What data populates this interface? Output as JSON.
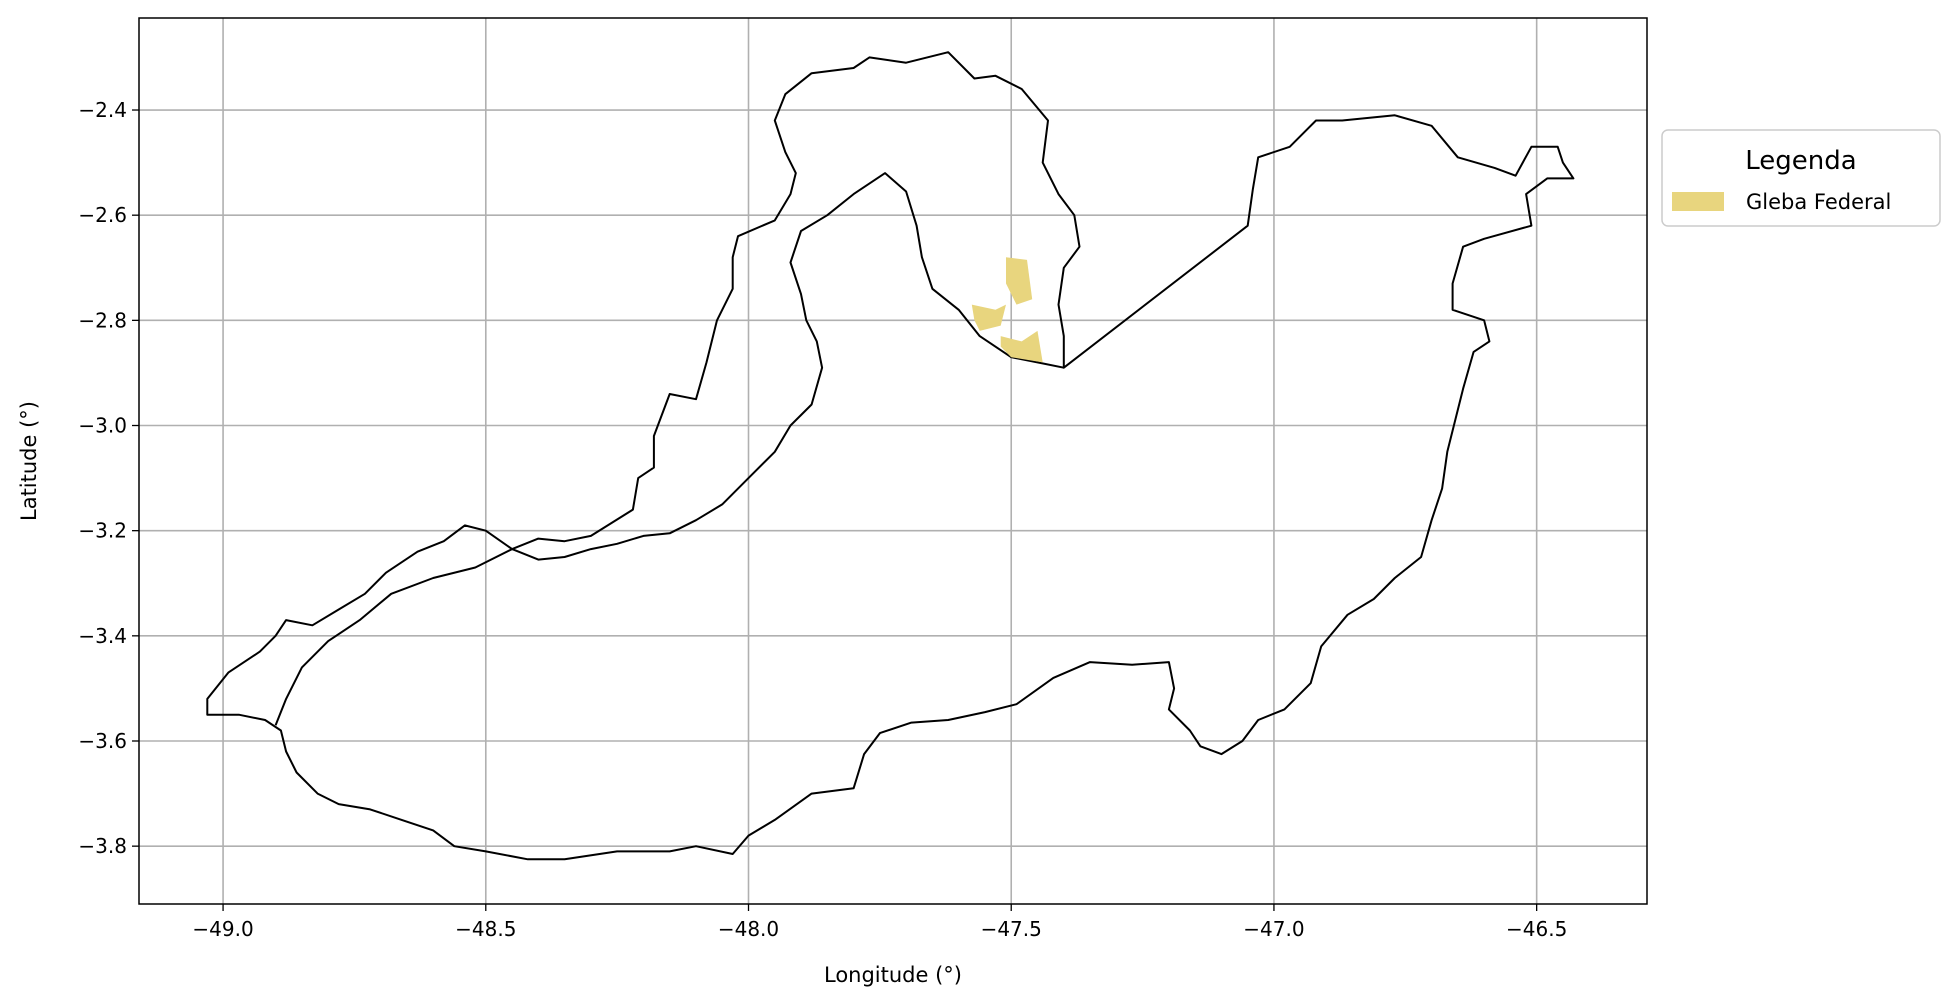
{
  "chart_data": {
    "type": "map",
    "xlabel": "Longitude (°)",
    "ylabel": "Latitude (°)",
    "xlim": [
      -49.16,
      -46.29
    ],
    "ylim": [
      -3.91,
      -2.225
    ],
    "xticks": [
      -49.0,
      -48.5,
      -48.0,
      -47.5,
      -47.0,
      -46.5
    ],
    "yticks": [
      -2.4,
      -2.6,
      -2.8,
      -3.0,
      -3.2,
      -3.4,
      -3.6,
      -3.8
    ],
    "xtick_labels": [
      "−49.0",
      "−48.5",
      "−48.0",
      "−47.5",
      "−47.0",
      "−46.5"
    ],
    "ytick_labels": [
      "−2.4",
      "−2.6",
      "−2.8",
      "−3.0",
      "−3.2",
      "−3.4",
      "−3.6",
      "−3.8"
    ],
    "grid": true,
    "legend": {
      "title": "Legenda",
      "placement": "outside-right-top",
      "entries": [
        {
          "label": "Gleba Federal",
          "color": "#e8d57e"
        }
      ]
    },
    "colors": {
      "boundary": "#000000",
      "gleba_fill": "#e8d57e",
      "grid": "#b0b0b0"
    },
    "boundary": [
      [
        -48.45,
        -3.235
      ],
      [
        -48.4,
        -3.215
      ],
      [
        -48.35,
        -3.22
      ],
      [
        -48.3,
        -3.21
      ],
      [
        -48.22,
        -3.16
      ],
      [
        -48.21,
        -3.1
      ],
      [
        -48.18,
        -3.08
      ],
      [
        -48.18,
        -3.02
      ],
      [
        -48.15,
        -2.94
      ],
      [
        -48.1,
        -2.95
      ],
      [
        -48.08,
        -2.88
      ],
      [
        -48.06,
        -2.8
      ],
      [
        -48.03,
        -2.74
      ],
      [
        -48.03,
        -2.68
      ],
      [
        -48.02,
        -2.64
      ],
      [
        -47.95,
        -2.61
      ],
      [
        -47.92,
        -2.56
      ],
      [
        -47.91,
        -2.52
      ],
      [
        -47.93,
        -2.48
      ],
      [
        -47.95,
        -2.42
      ],
      [
        -47.93,
        -2.37
      ],
      [
        -47.88,
        -2.33
      ],
      [
        -47.8,
        -2.32
      ],
      [
        -47.77,
        -2.3
      ],
      [
        -47.7,
        -2.31
      ],
      [
        -47.62,
        -2.29
      ],
      [
        -47.57,
        -2.34
      ],
      [
        -47.53,
        -2.335
      ],
      [
        -47.48,
        -2.36
      ],
      [
        -47.43,
        -2.42
      ],
      [
        -47.44,
        -2.5
      ],
      [
        -47.41,
        -2.56
      ],
      [
        -47.38,
        -2.6
      ],
      [
        -47.37,
        -2.66
      ],
      [
        -47.4,
        -2.7
      ],
      [
        -47.41,
        -2.77
      ],
      [
        -47.4,
        -2.83
      ],
      [
        -47.4,
        -2.89
      ],
      [
        -47.05,
        -2.62
      ],
      [
        -47.04,
        -2.55
      ],
      [
        -47.03,
        -2.49
      ],
      [
        -46.97,
        -2.47
      ],
      [
        -46.92,
        -2.42
      ],
      [
        -46.87,
        -2.42
      ],
      [
        -46.77,
        -2.41
      ],
      [
        -46.7,
        -2.43
      ],
      [
        -46.65,
        -2.49
      ],
      [
        -46.58,
        -2.51
      ],
      [
        -46.54,
        -2.525
      ],
      [
        -46.51,
        -2.47
      ],
      [
        -46.46,
        -2.47
      ],
      [
        -46.45,
        -2.5
      ],
      [
        -46.43,
        -2.53
      ],
      [
        -46.48,
        -2.53
      ],
      [
        -46.52,
        -2.56
      ],
      [
        -46.51,
        -2.62
      ],
      [
        -46.6,
        -2.645
      ],
      [
        -46.64,
        -2.66
      ],
      [
        -46.66,
        -2.73
      ],
      [
        -46.66,
        -2.78
      ],
      [
        -46.6,
        -2.8
      ],
      [
        -46.59,
        -2.84
      ],
      [
        -46.62,
        -2.86
      ],
      [
        -46.64,
        -2.93
      ],
      [
        -46.67,
        -3.05
      ],
      [
        -46.68,
        -3.12
      ],
      [
        -46.7,
        -3.18
      ],
      [
        -46.72,
        -3.25
      ],
      [
        -46.77,
        -3.29
      ],
      [
        -46.81,
        -3.33
      ],
      [
        -46.86,
        -3.36
      ],
      [
        -46.91,
        -3.42
      ],
      [
        -46.93,
        -3.49
      ],
      [
        -46.98,
        -3.54
      ],
      [
        -47.03,
        -3.56
      ],
      [
        -47.06,
        -3.6
      ],
      [
        -47.1,
        -3.625
      ],
      [
        -47.14,
        -3.61
      ],
      [
        -47.16,
        -3.58
      ],
      [
        -47.2,
        -3.54
      ],
      [
        -47.19,
        -3.5
      ],
      [
        -47.2,
        -3.45
      ],
      [
        -47.27,
        -3.455
      ],
      [
        -47.35,
        -3.45
      ],
      [
        -47.42,
        -3.48
      ],
      [
        -47.49,
        -3.53
      ],
      [
        -47.55,
        -3.545
      ],
      [
        -47.62,
        -3.56
      ],
      [
        -47.69,
        -3.565
      ],
      [
        -47.75,
        -3.585
      ],
      [
        -47.78,
        -3.625
      ],
      [
        -47.8,
        -3.69
      ],
      [
        -47.88,
        -3.7
      ],
      [
        -47.95,
        -3.75
      ],
      [
        -48.0,
        -3.78
      ],
      [
        -48.03,
        -3.815
      ],
      [
        -48.1,
        -3.8
      ],
      [
        -48.15,
        -3.81
      ],
      [
        -48.25,
        -3.81
      ],
      [
        -48.35,
        -3.825
      ],
      [
        -48.42,
        -3.825
      ],
      [
        -48.5,
        -3.81
      ],
      [
        -48.56,
        -3.8
      ],
      [
        -48.6,
        -3.77
      ],
      [
        -48.66,
        -3.75
      ],
      [
        -48.72,
        -3.73
      ],
      [
        -48.78,
        -3.72
      ],
      [
        -48.82,
        -3.7
      ],
      [
        -48.86,
        -3.66
      ],
      [
        -48.88,
        -3.62
      ],
      [
        -48.89,
        -3.58
      ],
      [
        -48.92,
        -3.56
      ],
      [
        -48.97,
        -3.55
      ],
      [
        -49.03,
        -3.55
      ],
      [
        -49.03,
        -3.52
      ],
      [
        -48.99,
        -3.47
      ],
      [
        -48.93,
        -3.43
      ],
      [
        -48.9,
        -3.4
      ],
      [
        -48.88,
        -3.37
      ],
      [
        -48.83,
        -3.38
      ],
      [
        -48.78,
        -3.35
      ],
      [
        -48.73,
        -3.32
      ],
      [
        -48.69,
        -3.28
      ],
      [
        -48.63,
        -3.24
      ],
      [
        -48.58,
        -3.22
      ],
      [
        -48.54,
        -3.19
      ],
      [
        -48.5,
        -3.2
      ],
      [
        -48.45,
        -3.235
      ]
    ],
    "boundary_inner": [
      [
        -48.45,
        -3.235
      ],
      [
        -48.4,
        -3.255
      ],
      [
        -48.35,
        -3.25
      ],
      [
        -48.3,
        -3.235
      ],
      [
        -48.25,
        -3.225
      ],
      [
        -48.2,
        -3.21
      ],
      [
        -48.15,
        -3.205
      ],
      [
        -48.1,
        -3.18
      ],
      [
        -48.05,
        -3.15
      ],
      [
        -48.0,
        -3.1
      ],
      [
        -47.95,
        -3.05
      ],
      [
        -47.92,
        -3.0
      ],
      [
        -47.88,
        -2.96
      ],
      [
        -47.86,
        -2.89
      ],
      [
        -47.87,
        -2.84
      ],
      [
        -47.89,
        -2.8
      ],
      [
        -47.9,
        -2.75
      ],
      [
        -47.92,
        -2.69
      ],
      [
        -47.9,
        -2.63
      ],
      [
        -47.85,
        -2.6
      ],
      [
        -47.8,
        -2.56
      ],
      [
        -47.74,
        -2.52
      ],
      [
        -47.7,
        -2.555
      ],
      [
        -47.68,
        -2.62
      ],
      [
        -47.67,
        -2.68
      ],
      [
        -47.65,
        -2.74
      ],
      [
        -47.6,
        -2.78
      ],
      [
        -47.56,
        -2.83
      ],
      [
        -47.5,
        -2.87
      ],
      [
        -47.45,
        -2.88
      ],
      [
        -47.4,
        -2.89
      ]
    ],
    "boundary_inner2": [
      [
        -48.45,
        -3.235
      ],
      [
        -48.52,
        -3.27
      ],
      [
        -48.6,
        -3.29
      ],
      [
        -48.68,
        -3.32
      ],
      [
        -48.74,
        -3.37
      ],
      [
        -48.8,
        -3.41
      ],
      [
        -48.85,
        -3.46
      ],
      [
        -48.88,
        -3.52
      ],
      [
        -48.9,
        -3.57
      ]
    ],
    "gleba_polygons": [
      [
        [
          -47.51,
          -2.68
        ],
        [
          -47.47,
          -2.685
        ],
        [
          -47.46,
          -2.76
        ],
        [
          -47.49,
          -2.77
        ],
        [
          -47.51,
          -2.73
        ]
      ],
      [
        [
          -47.575,
          -2.77
        ],
        [
          -47.53,
          -2.78
        ],
        [
          -47.51,
          -2.77
        ],
        [
          -47.52,
          -2.81
        ],
        [
          -47.56,
          -2.82
        ],
        [
          -47.57,
          -2.8
        ]
      ],
      [
        [
          -47.52,
          -2.83
        ],
        [
          -47.48,
          -2.84
        ],
        [
          -47.45,
          -2.82
        ],
        [
          -47.44,
          -2.88
        ],
        [
          -47.5,
          -2.87
        ],
        [
          -47.52,
          -2.85
        ]
      ]
    ]
  }
}
